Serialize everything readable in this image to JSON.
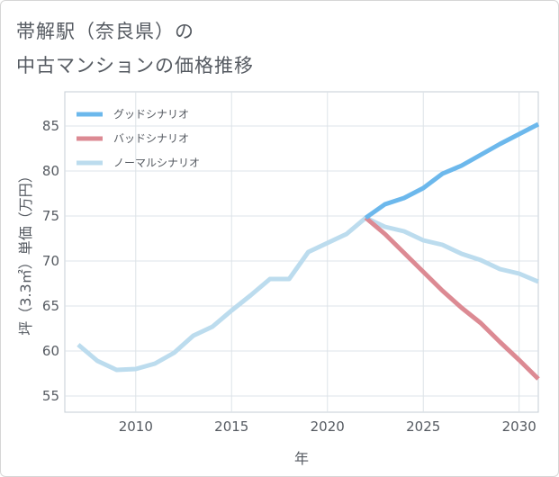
{
  "title_line1": "帯解駅（奈良県）の",
  "title_line2": "中古マンションの価格推移",
  "chart_data": {
    "type": "line",
    "xlabel": "年",
    "ylabel": "坪（3.3㎡）単価（万円）",
    "xlim": [
      2006.3,
      2031
    ],
    "ylim": [
      53.2,
      88.8
    ],
    "xticks": [
      2010,
      2015,
      2020,
      2025,
      2030
    ],
    "yticks": [
      55,
      60,
      65,
      70,
      75,
      80,
      85
    ],
    "grid": true,
    "legend_position": "top-left",
    "series": [
      {
        "name": "グッドシナリオ",
        "color": "#6cb8ec",
        "x": [
          2022,
          2023,
          2024,
          2025,
          2026,
          2027,
          2028,
          2029,
          2030,
          2031
        ],
        "y": [
          74.8,
          76.3,
          77.0,
          78.1,
          79.7,
          80.6,
          81.8,
          83.0,
          84.1,
          85.2
        ]
      },
      {
        "name": "バッドシナリオ",
        "color": "#dc8a93",
        "x": [
          2022,
          2023,
          2024,
          2025,
          2026,
          2027,
          2028,
          2029,
          2030,
          2031
        ],
        "y": [
          74.8,
          73.0,
          70.9,
          68.8,
          66.7,
          64.8,
          63.1,
          61.0,
          59.0,
          56.9
        ]
      },
      {
        "name": "ノーマルシナリオ",
        "color": "#bcdcee",
        "x": [
          2007,
          2008,
          2009,
          2010,
          2011,
          2012,
          2013,
          2014,
          2015,
          2016,
          2017,
          2018,
          2019,
          2020,
          2021,
          2022,
          2023,
          2024,
          2025,
          2026,
          2027,
          2028,
          2029,
          2030,
          2031
        ],
        "y": [
          60.7,
          58.9,
          57.9,
          58.0,
          58.6,
          59.8,
          61.7,
          62.7,
          64.5,
          66.2,
          68.0,
          68.0,
          71.0,
          72.0,
          73.0,
          74.8,
          73.8,
          73.3,
          72.3,
          71.8,
          70.8,
          70.1,
          69.1,
          68.6,
          67.7
        ]
      }
    ]
  }
}
